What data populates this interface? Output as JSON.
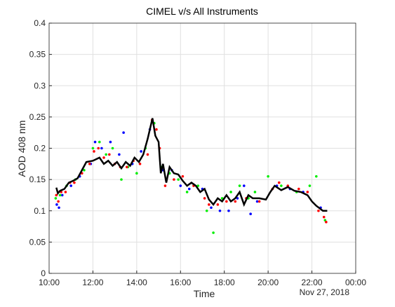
{
  "chart_data": {
    "type": "scatter-line",
    "title": "CIMEL v/s All Instruments",
    "ylabel": "AOD 408 nm",
    "xlabel": "Time",
    "date_label": "Nov 27, 2018",
    "grid": true,
    "xlim": [
      10,
      24
    ],
    "xticks": [
      {
        "value": 10,
        "label": "10:00"
      },
      {
        "value": 12,
        "label": "12:00"
      },
      {
        "value": 14,
        "label": "14:00"
      },
      {
        "value": 16,
        "label": "16:00"
      },
      {
        "value": 18,
        "label": "18:00"
      },
      {
        "value": 20,
        "label": "20:00"
      },
      {
        "value": 22,
        "label": "22:00"
      },
      {
        "value": 24,
        "label": "00:00"
      }
    ],
    "ylim": [
      0,
      0.4
    ],
    "yticks": [
      0,
      0.05,
      0.1,
      0.15,
      0.2,
      0.25,
      0.3,
      0.35,
      0.4
    ],
    "series": [
      {
        "kind": "scatter",
        "color": "#0000ff",
        "x": [
          10.35,
          10.45,
          10.6,
          11.0,
          11.4,
          11.9,
          12.1,
          12.4,
          12.8,
          13.2,
          13.4,
          13.8,
          14.2,
          14.6,
          15.2,
          15.6,
          16.0,
          16.4,
          17.0,
          17.4,
          17.8,
          18.2,
          18.6,
          18.9,
          19.2,
          19.5,
          20.4,
          21.0,
          21.6,
          22.4
        ],
        "values": [
          0.11,
          0.105,
          0.125,
          0.14,
          0.155,
          0.175,
          0.21,
          0.2,
          0.21,
          0.19,
          0.225,
          0.175,
          0.195,
          0.23,
          0.165,
          0.165,
          0.14,
          0.135,
          0.135,
          0.105,
          0.1,
          0.1,
          0.12,
          0.14,
          0.095,
          0.115,
          0.14,
          0.135,
          0.13,
          0.105
        ]
      },
      {
        "kind": "scatter",
        "color": "#00ee00",
        "x": [
          10.3,
          10.5,
          10.8,
          11.2,
          11.6,
          12.0,
          12.3,
          12.6,
          12.9,
          13.3,
          13.6,
          14.0,
          14.4,
          14.8,
          15.1,
          15.5,
          15.9,
          16.3,
          16.8,
          17.2,
          17.5,
          17.9,
          18.3,
          18.7,
          19.1,
          19.4,
          20.0,
          20.6,
          21.3,
          21.9,
          22.2,
          22.6
        ],
        "values": [
          0.12,
          0.125,
          0.14,
          0.15,
          0.165,
          0.2,
          0.21,
          0.19,
          0.2,
          0.15,
          0.17,
          0.16,
          0.2,
          0.24,
          0.17,
          0.16,
          0.15,
          0.13,
          0.14,
          0.1,
          0.065,
          0.12,
          0.13,
          0.14,
          0.12,
          0.13,
          0.155,
          0.14,
          0.13,
          0.14,
          0.155,
          0.085
        ]
      },
      {
        "kind": "scatter",
        "color": "#ff0000",
        "x": [
          10.33,
          10.42,
          10.55,
          10.75,
          10.95,
          11.15,
          11.5,
          11.85,
          12.05,
          12.25,
          12.5,
          12.75,
          13.0,
          13.25,
          13.55,
          13.85,
          14.15,
          14.5,
          14.7,
          14.9,
          15.05,
          15.3,
          15.7,
          16.1,
          16.6,
          17.1,
          17.3,
          17.7,
          18.1,
          18.5,
          19.0,
          19.6,
          20.2,
          20.5,
          20.9,
          21.4,
          21.8,
          22.3,
          22.55,
          22.65
        ],
        "values": [
          0.125,
          0.115,
          0.13,
          0.13,
          0.145,
          0.145,
          0.16,
          0.175,
          0.195,
          0.2,
          0.185,
          0.19,
          0.175,
          0.17,
          0.17,
          0.18,
          0.175,
          0.19,
          0.245,
          0.23,
          0.2,
          0.14,
          0.15,
          0.155,
          0.14,
          0.12,
          0.11,
          0.11,
          0.115,
          0.115,
          0.12,
          0.115,
          0.135,
          0.145,
          0.14,
          0.135,
          0.13,
          0.1,
          0.09,
          0.082
        ]
      },
      {
        "kind": "line",
        "color": "#000000",
        "x": [
          10.33,
          10.4,
          10.5,
          10.7,
          10.9,
          11.1,
          11.3,
          11.5,
          11.7,
          12.0,
          12.3,
          12.5,
          12.7,
          12.9,
          13.1,
          13.3,
          13.5,
          13.7,
          13.9,
          14.1,
          14.3,
          14.5,
          14.72,
          14.85,
          15.0,
          15.1,
          15.2,
          15.35,
          15.5,
          15.7,
          15.9,
          16.1,
          16.3,
          16.5,
          16.7,
          16.9,
          17.1,
          17.3,
          17.5,
          17.7,
          17.9,
          18.1,
          18.3,
          18.5,
          18.7,
          18.9,
          19.1,
          19.3,
          19.6,
          19.9,
          20.1,
          20.3,
          20.6,
          20.9,
          21.2,
          21.5,
          21.8,
          22.0,
          22.2,
          22.5,
          22.7
        ],
        "values": [
          0.137,
          0.128,
          0.132,
          0.135,
          0.145,
          0.148,
          0.152,
          0.165,
          0.178,
          0.18,
          0.185,
          0.175,
          0.18,
          0.172,
          0.178,
          0.168,
          0.178,
          0.172,
          0.185,
          0.178,
          0.19,
          0.215,
          0.248,
          0.22,
          0.21,
          0.16,
          0.175,
          0.145,
          0.17,
          0.16,
          0.158,
          0.148,
          0.14,
          0.145,
          0.14,
          0.13,
          0.135,
          0.118,
          0.11,
          0.12,
          0.115,
          0.125,
          0.115,
          0.12,
          0.13,
          0.11,
          0.125,
          0.12,
          0.12,
          0.118,
          0.13,
          0.14,
          0.133,
          0.138,
          0.132,
          0.13,
          0.125,
          0.115,
          0.108,
          0.1,
          0.1
        ]
      }
    ]
  }
}
